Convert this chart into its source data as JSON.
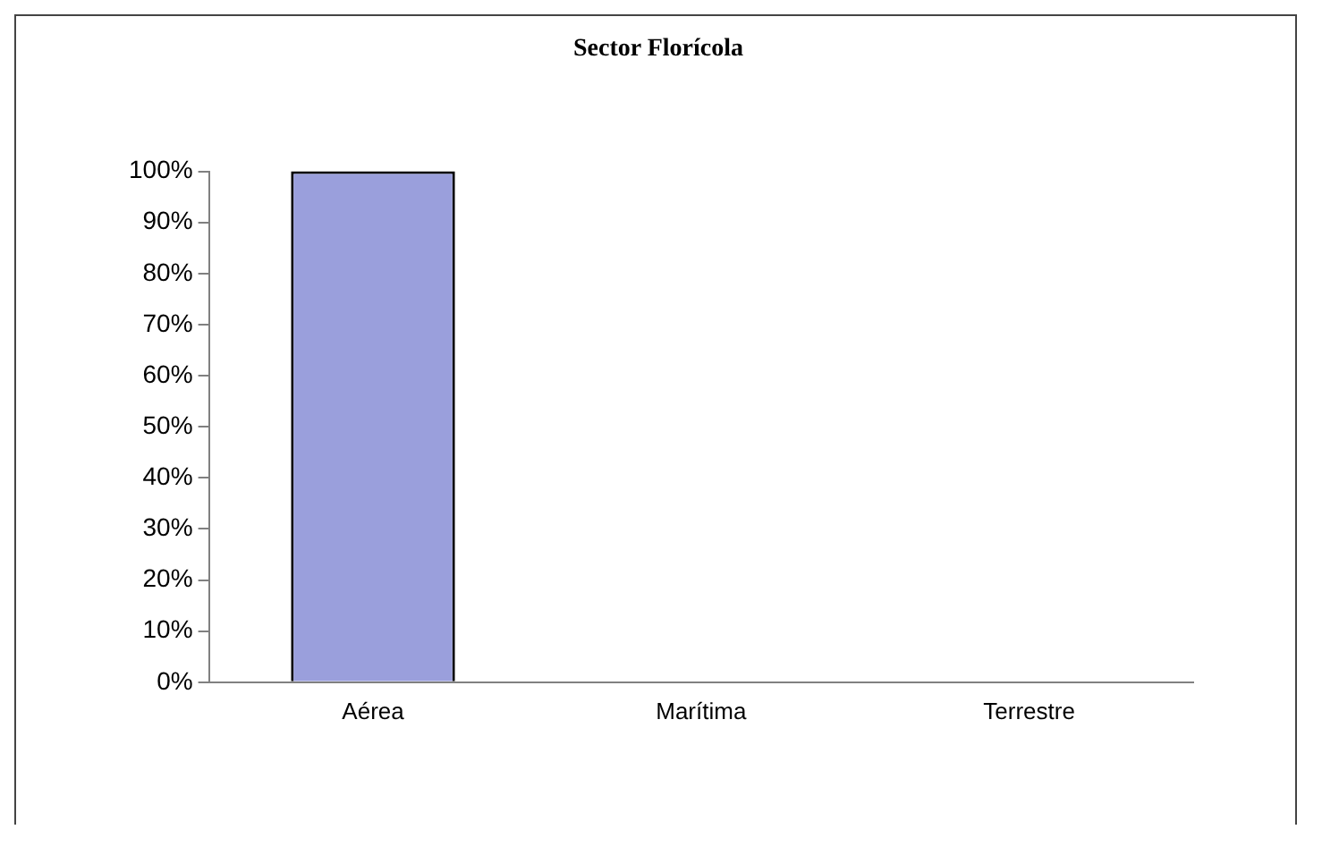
{
  "chart_data": {
    "type": "bar",
    "title": "Sector Florícola",
    "categories": [
      "Aérea",
      "Marítima",
      "Terrestre"
    ],
    "values": [
      100,
      0,
      0
    ],
    "color": "#9a9fdc",
    "ylim": [
      0,
      100
    ],
    "yticks": [
      {
        "value": 0,
        "label": "0%"
      },
      {
        "value": 10,
        "label": "10%"
      },
      {
        "value": 20,
        "label": "20%"
      },
      {
        "value": 30,
        "label": "30%"
      },
      {
        "value": 40,
        "label": "40%"
      },
      {
        "value": 50,
        "label": "50%"
      },
      {
        "value": 60,
        "label": "60%"
      },
      {
        "value": 70,
        "label": "70%"
      },
      {
        "value": 80,
        "label": "80%"
      },
      {
        "value": 90,
        "label": "90%"
      },
      {
        "value": 100,
        "label": "100%"
      }
    ],
    "grid": false,
    "legend": false
  }
}
